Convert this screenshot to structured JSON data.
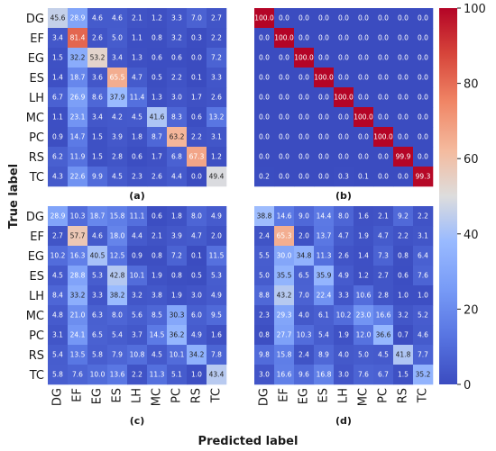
{
  "chart_data": {
    "type": "heatmap",
    "xlabel": "Predicted label",
    "ylabel": "True label",
    "classes": [
      "DG",
      "EF",
      "EG",
      "ES",
      "LH",
      "MC",
      "PC",
      "RS",
      "TC"
    ],
    "colorbar": {
      "min": 0,
      "max": 100,
      "ticks": [
        0,
        20,
        40,
        60,
        80,
        100
      ],
      "colormap": "coolwarm"
    },
    "panels": [
      {
        "label": "(a)",
        "matrix": [
          [
            45.6,
            28.9,
            4.6,
            4.6,
            2.1,
            1.2,
            3.3,
            7.0,
            2.7
          ],
          [
            3.4,
            81.4,
            2.6,
            5.0,
            1.1,
            0.8,
            3.2,
            0.3,
            2.2
          ],
          [
            1.5,
            32.2,
            53.2,
            3.4,
            1.3,
            0.6,
            0.6,
            0.0,
            7.2
          ],
          [
            1.4,
            18.7,
            3.6,
            65.5,
            4.7,
            0.5,
            2.2,
            0.1,
            3.3
          ],
          [
            6.7,
            26.9,
            8.6,
            37.9,
            11.4,
            1.3,
            3.0,
            1.7,
            2.6
          ],
          [
            1.1,
            23.1,
            3.4,
            4.2,
            4.5,
            41.6,
            8.3,
            0.6,
            13.2
          ],
          [
            0.9,
            14.7,
            1.5,
            3.9,
            1.8,
            8.7,
            63.2,
            2.2,
            3.1
          ],
          [
            6.2,
            11.9,
            1.5,
            2.8,
            0.6,
            1.7,
            6.8,
            67.3,
            1.2
          ],
          [
            4.3,
            22.6,
            9.9,
            4.5,
            2.3,
            2.6,
            4.4,
            0.0,
            49.4
          ]
        ]
      },
      {
        "label": "(b)",
        "matrix": [
          [
            100.0,
            0.0,
            0.0,
            0.0,
            0.0,
            0.0,
            0.0,
            0.0,
            0.0
          ],
          [
            0.0,
            100.0,
            0.0,
            0.0,
            0.0,
            0.0,
            0.0,
            0.0,
            0.0
          ],
          [
            0.0,
            0.0,
            100.0,
            0.0,
            0.0,
            0.0,
            0.0,
            0.0,
            0.0
          ],
          [
            0.0,
            0.0,
            0.0,
            100.0,
            0.0,
            0.0,
            0.0,
            0.0,
            0.0
          ],
          [
            0.0,
            0.0,
            0.0,
            0.0,
            100.0,
            0.0,
            0.0,
            0.0,
            0.0
          ],
          [
            0.0,
            0.0,
            0.0,
            0.0,
            0.0,
            100.0,
            0.0,
            0.0,
            0.0
          ],
          [
            0.0,
            0.0,
            0.0,
            0.0,
            0.0,
            0.0,
            100.0,
            0.0,
            0.0
          ],
          [
            0.0,
            0.0,
            0.0,
            0.0,
            0.0,
            0.0,
            0.0,
            99.9,
            0.0
          ],
          [
            0.2,
            0.0,
            0.0,
            0.0,
            0.3,
            0.1,
            0.0,
            0.0,
            99.3
          ]
        ]
      },
      {
        "label": "(c)",
        "matrix": [
          [
            28.9,
            10.3,
            18.7,
            15.8,
            11.1,
            0.6,
            1.8,
            8.0,
            4.9
          ],
          [
            2.7,
            57.7,
            4.6,
            18.0,
            4.4,
            2.1,
            3.9,
            4.7,
            2.0
          ],
          [
            10.2,
            16.3,
            40.5,
            12.5,
            0.9,
            0.8,
            7.2,
            0.1,
            11.5
          ],
          [
            4.5,
            28.8,
            5.3,
            42.8,
            10.1,
            1.9,
            0.8,
            0.5,
            5.3
          ],
          [
            8.4,
            33.2,
            3.3,
            38.2,
            3.2,
            3.8,
            1.9,
            3.0,
            4.9
          ],
          [
            4.8,
            21.0,
            6.3,
            8.0,
            5.6,
            8.5,
            30.3,
            6.0,
            9.5
          ],
          [
            3.1,
            24.1,
            6.5,
            5.4,
            3.7,
            14.5,
            36.2,
            4.9,
            1.6
          ],
          [
            5.4,
            13.5,
            5.8,
            7.9,
            10.8,
            4.5,
            10.1,
            34.2,
            7.8
          ],
          [
            5.8,
            7.6,
            10.0,
            13.6,
            2.2,
            11.3,
            5.1,
            1.0,
            43.4
          ]
        ]
      },
      {
        "label": "(d)",
        "matrix": [
          [
            38.8,
            14.6,
            9.0,
            14.4,
            8.0,
            1.6,
            2.1,
            9.2,
            2.2
          ],
          [
            2.4,
            65.3,
            2.0,
            13.7,
            4.7,
            1.9,
            4.7,
            2.2,
            3.1
          ],
          [
            5.5,
            30.0,
            34.8,
            11.3,
            2.6,
            1.4,
            7.3,
            0.8,
            6.4
          ],
          [
            5.0,
            35.5,
            6.5,
            35.9,
            4.9,
            1.2,
            2.7,
            0.6,
            7.6
          ],
          [
            8.8,
            43.2,
            7.0,
            22.4,
            3.3,
            10.6,
            2.8,
            1.0,
            1.0
          ],
          [
            2.3,
            29.3,
            4.0,
            6.1,
            10.2,
            23.0,
            16.6,
            3.2,
            5.2
          ],
          [
            0.8,
            27.7,
            10.3,
            5.4,
            1.9,
            12.0,
            36.6,
            0.7,
            4.6
          ],
          [
            9.8,
            15.8,
            2.4,
            8.9,
            4.0,
            5.0,
            4.5,
            41.8,
            7.7
          ],
          [
            3.0,
            16.6,
            9.6,
            16.8,
            3.0,
            7.6,
            6.7,
            1.5,
            35.2
          ]
        ]
      }
    ]
  }
}
